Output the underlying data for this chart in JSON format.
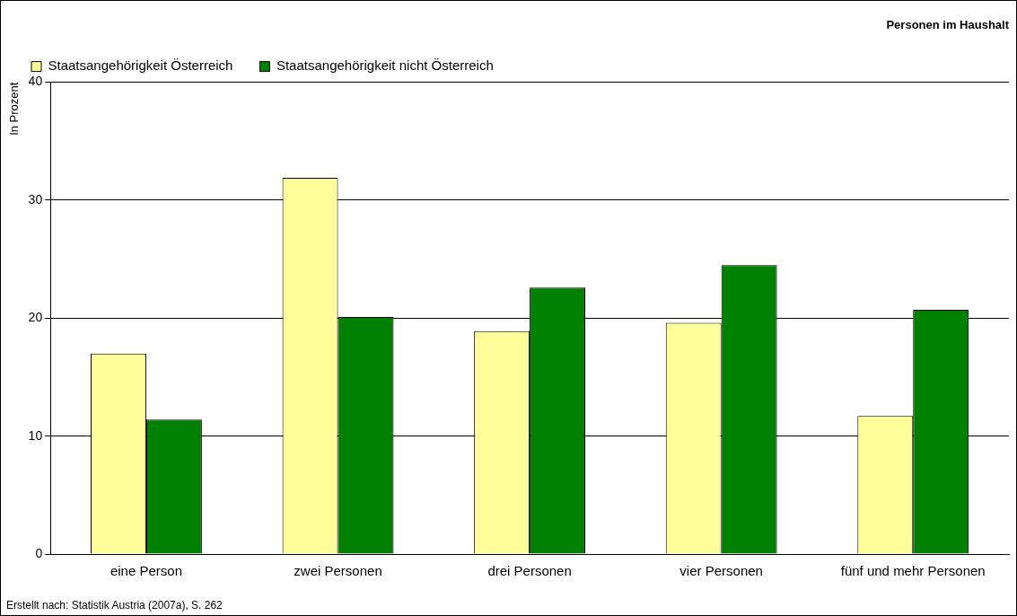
{
  "chart_data": {
    "type": "bar",
    "title": "Personen im Haushalt",
    "ylabel": "In Prozent",
    "categories": [
      "eine Person",
      "zwei Personen",
      "drei Personen",
      "vier Personen",
      "fünf und mehr Personen"
    ],
    "series": [
      {
        "name": "Staatsangehörigkeit Österreich",
        "color": "#ffff99",
        "values": [
          17.0,
          31.9,
          18.9,
          19.6,
          11.7
        ]
      },
      {
        "name": "Staatsangehörigkeit nicht Österreich",
        "color": "#008000",
        "values": [
          11.4,
          20.1,
          22.6,
          24.5,
          20.7
        ]
      }
    ],
    "ylim": [
      0,
      40
    ],
    "yticks": [
      0,
      10,
      20,
      30,
      40
    ],
    "grid": "y",
    "legend": "top left",
    "annotations": [
      "Erstellt nach: Statistik Austria (2007a), S. 262"
    ]
  }
}
